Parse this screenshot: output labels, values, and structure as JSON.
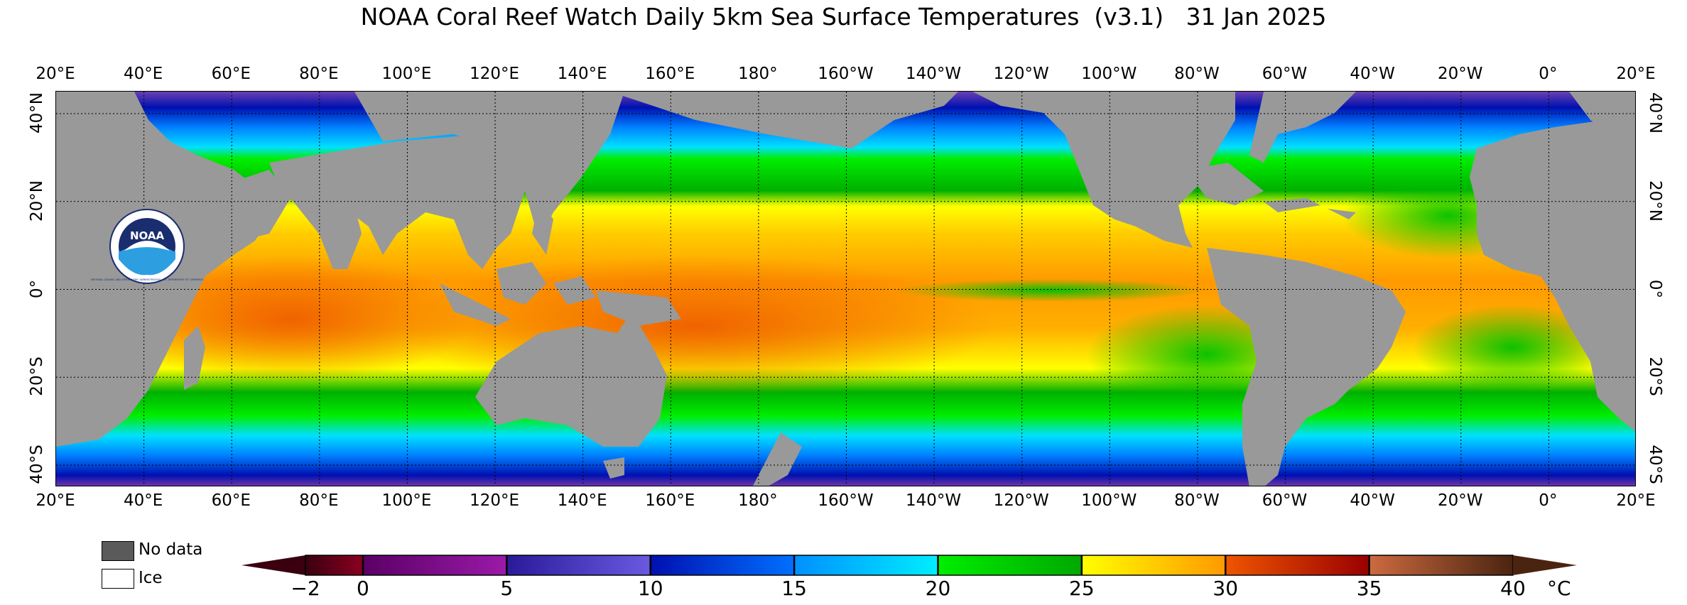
{
  "title": "NOAA Coral Reef Watch Daily 5km Sea Surface Temperatures  (v3.1)   31 Jan 2025",
  "logo_text": "NOAA",
  "logo_ring_text": "NATIONAL OCEANIC AND ATMOSPHERIC ADMINISTRATION · U.S. DEPARTMENT OF COMMERCE",
  "lon_labels": [
    "20°E",
    "40°E",
    "60°E",
    "80°E",
    "100°E",
    "120°E",
    "140°E",
    "160°E",
    "180°",
    "160°W",
    "140°W",
    "120°W",
    "100°W",
    "80°W",
    "60°W",
    "40°W",
    "20°W",
    "0°",
    "20°E"
  ],
  "lat_labels": [
    "40°N",
    "20°N",
    "0°",
    "20°S",
    "40°S"
  ],
  "legend": {
    "nodata_label": "No data",
    "ice_label": "Ice",
    "nodata_color": "#5a5a5a",
    "ice_color": "#ffffff"
  },
  "land_color": "#999999",
  "colorbar": {
    "min": -2,
    "max": 40,
    "unit": "°C",
    "ticks": [
      "−2",
      "0",
      "5",
      "10",
      "15",
      "20",
      "25",
      "30",
      "35",
      "40"
    ],
    "tick_values": [
      -2,
      0,
      5,
      10,
      15,
      20,
      25,
      30,
      35,
      40
    ],
    "stops": [
      {
        "v": -2,
        "c": "#3a0010"
      },
      {
        "v": 0,
        "c": "#8a0020"
      },
      {
        "v": 0.01,
        "c": "#5a0066"
      },
      {
        "v": 5,
        "c": "#9b1aa8"
      },
      {
        "v": 5.01,
        "c": "#2a1a9a"
      },
      {
        "v": 10,
        "c": "#6a5ae0"
      },
      {
        "v": 10.01,
        "c": "#0010b0"
      },
      {
        "v": 15,
        "c": "#0070ff"
      },
      {
        "v": 15.01,
        "c": "#0090ff"
      },
      {
        "v": 20,
        "c": "#00eeff"
      },
      {
        "v": 20.01,
        "c": "#00ee00"
      },
      {
        "v": 25,
        "c": "#00a800"
      },
      {
        "v": 25.01,
        "c": "#ffff00"
      },
      {
        "v": 30,
        "c": "#ff9900"
      },
      {
        "v": 30.01,
        "c": "#ee5500"
      },
      {
        "v": 35,
        "c": "#990000"
      },
      {
        "v": 35.01,
        "c": "#cc6a40"
      },
      {
        "v": 40,
        "c": "#4a2410"
      }
    ]
  }
}
